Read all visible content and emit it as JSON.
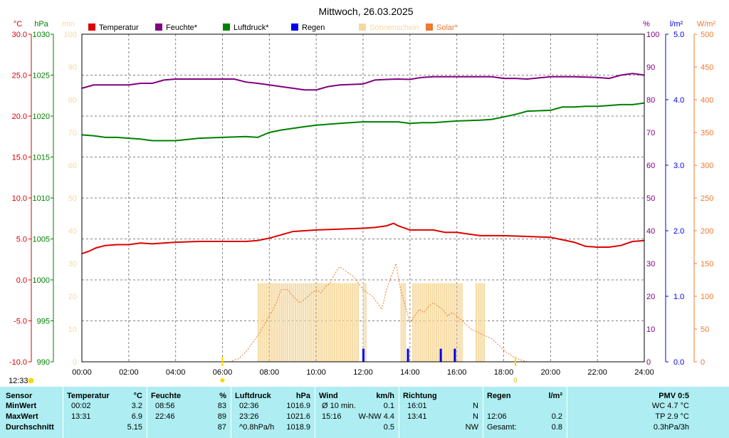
{
  "title": "Mittwoch, 26.03.2025",
  "colors": {
    "temperature": "#dd0000",
    "humidity": "#800080",
    "pressure": "#008000",
    "rain": "#0000ee",
    "sunshine": "#f5d9a0",
    "solar": "#f07830",
    "grid": "#808080",
    "table_bg": "#aeeef2"
  },
  "chart_data": {
    "type": "line",
    "title": "Mittwoch, 26.03.2025",
    "x_unit": "hours",
    "x_ticks": [
      "00:00",
      "02:00",
      "04:00",
      "06:00",
      "08:00",
      "10:00",
      "12:00",
      "14:00",
      "16:00",
      "18:00",
      "20:00",
      "22:00",
      "24:00"
    ],
    "x_range": [
      0,
      24
    ],
    "grid": true,
    "legend": [
      {
        "name": "Temperatur",
        "color": "#dd0000"
      },
      {
        "name": "Feuchte*",
        "color": "#800080"
      },
      {
        "name": "Luftdruck*",
        "color": "#008000"
      },
      {
        "name": "Regen",
        "color": "#0000ee"
      },
      {
        "name": "Sonnenschein",
        "color": "#f5d9a0"
      },
      {
        "name": "Solar*",
        "color": "#f07830"
      }
    ],
    "axes": {
      "temperature": {
        "unit": "°C",
        "range": [
          -10,
          30
        ],
        "ticks": [
          "30.0",
          "25.0",
          "20.0",
          "15.0",
          "10.0",
          "5.0",
          "0.0",
          "-5.0",
          "-10.0"
        ]
      },
      "pressure": {
        "unit": "hPa",
        "range": [
          990,
          1030
        ],
        "ticks": [
          "1030",
          "1025",
          "1020",
          "1015",
          "1010",
          "1005",
          "1000",
          "995",
          "990"
        ]
      },
      "sunshine": {
        "unit": "min",
        "range": [
          0,
          100
        ],
        "ticks": [
          "100",
          "90",
          "80",
          "70",
          "60",
          "50",
          "40",
          "30",
          "20",
          "10",
          "0"
        ]
      },
      "humidity": {
        "unit": "%",
        "range": [
          0,
          100
        ],
        "ticks": [
          "100",
          "90",
          "80",
          "70",
          "60",
          "50",
          "40",
          "30",
          "20",
          "10",
          "0"
        ]
      },
      "rain": {
        "unit": "l/m²",
        "range": [
          0,
          5
        ],
        "ticks": [
          "5.0",
          "4.0",
          "3.0",
          "2.0",
          "1.0",
          "0.0"
        ]
      },
      "solar": {
        "unit": "W/m²",
        "range": [
          0,
          500
        ],
        "ticks": [
          "500",
          "450",
          "400",
          "350",
          "300",
          "250",
          "200",
          "150",
          "100",
          "50",
          "0"
        ]
      }
    },
    "series": [
      {
        "name": "Temperatur",
        "axis": "temperature",
        "x": [
          0,
          0.3,
          0.6,
          1,
          1.5,
          2,
          2.5,
          3,
          4,
          5,
          6,
          7,
          7.5,
          8,
          8.5,
          9,
          9.5,
          10,
          11,
          12,
          12.5,
          13,
          13.3,
          13.5,
          14,
          15,
          15.5,
          16,
          16.5,
          17,
          18,
          19,
          20,
          20.5,
          21,
          21.5,
          22,
          22.5,
          23,
          23.5,
          24
        ],
        "values": [
          3.2,
          3.5,
          3.9,
          4.2,
          4.3,
          4.3,
          4.5,
          4.4,
          4.6,
          4.7,
          4.7,
          4.7,
          4.8,
          5.1,
          5.5,
          5.9,
          6.0,
          6.1,
          6.2,
          6.3,
          6.4,
          6.6,
          6.9,
          6.6,
          6.1,
          6.1,
          5.8,
          5.8,
          5.6,
          5.4,
          5.4,
          5.3,
          5.2,
          4.9,
          4.6,
          4.1,
          4.0,
          4.0,
          4.2,
          4.7,
          4.8
        ]
      },
      {
        "name": "Feuchte*",
        "axis": "humidity",
        "x": [
          0,
          0.5,
          1,
          2,
          2.5,
          3,
          3.5,
          4,
          5,
          6,
          6.5,
          7,
          7.5,
          8,
          8.5,
          9,
          9.5,
          10,
          10.5,
          11,
          12,
          12.5,
          13,
          13.5,
          14,
          14.5,
          15,
          16,
          17,
          17.5,
          18,
          18.5,
          19,
          20,
          21,
          22,
          22.5,
          23,
          23.5,
          24
        ],
        "values": [
          83.5,
          84.5,
          84.5,
          84.5,
          85,
          85,
          86,
          86.3,
          86.3,
          86.3,
          86.3,
          85.4,
          85,
          84.5,
          84,
          83.5,
          83,
          83,
          84,
          84.5,
          84.8,
          86,
          86.2,
          86.3,
          86.2,
          86.8,
          87,
          87,
          87,
          87,
          86.5,
          86.5,
          86.3,
          87,
          87,
          86.8,
          86.5,
          87.5,
          88,
          87.5
        ]
      },
      {
        "name": "Luftdruck*",
        "axis": "pressure",
        "x": [
          0,
          0.5,
          1,
          1.5,
          2,
          2.5,
          3,
          4,
          5,
          6,
          7,
          7.5,
          8,
          8.5,
          9,
          9.5,
          10,
          10.5,
          11,
          12,
          12.5,
          13,
          13.5,
          14,
          14.5,
          15,
          16,
          17,
          17.5,
          18,
          18.5,
          19,
          20,
          20.5,
          21,
          21.5,
          22,
          22.5,
          23,
          23.5,
          24
        ],
        "values": [
          1017.7,
          1017.6,
          1017.4,
          1017.4,
          1017.3,
          1017.2,
          1017.0,
          1017.0,
          1017.3,
          1017.4,
          1017.5,
          1017.4,
          1018.0,
          1018.3,
          1018.5,
          1018.7,
          1018.9,
          1019.0,
          1019.1,
          1019.3,
          1019.3,
          1019.3,
          1019.3,
          1019.1,
          1019.2,
          1019.2,
          1019.4,
          1019.5,
          1019.6,
          1019.9,
          1020.2,
          1020.6,
          1020.7,
          1021.1,
          1021.1,
          1021.2,
          1021.2,
          1021.3,
          1021.4,
          1021.4,
          1021.6
        ]
      },
      {
        "name": "Solar*",
        "axis": "solar",
        "x": [
          6.3,
          6.7,
          7,
          7.3,
          7.6,
          8,
          8.3,
          8.5,
          8.8,
          9,
          9.3,
          9.5,
          9.8,
          10,
          10.2,
          10.4,
          10.6,
          10.8,
          11,
          11.2,
          11.4,
          11.6,
          11.8,
          12,
          12.2,
          12.4,
          12.6,
          12.8,
          13,
          13.2,
          13.4,
          13.6,
          13.8,
          14,
          14.2,
          14.4,
          14.6,
          14.8,
          15,
          15.2,
          15.4,
          15.6,
          15.8,
          16,
          16.3,
          16.6,
          16.9,
          17.2,
          17.5,
          17.8,
          18.1,
          18.4,
          18.7,
          19
        ],
        "values": [
          0,
          5,
          15,
          30,
          45,
          70,
          90,
          110,
          110,
          100,
          90,
          95,
          105,
          110,
          105,
          115,
          120,
          135,
          145,
          140,
          135,
          130,
          120,
          110,
          105,
          100,
          90,
          80,
          110,
          130,
          150,
          110,
          85,
          60,
          70,
          80,
          75,
          85,
          90,
          85,
          80,
          70,
          75,
          70,
          60,
          50,
          45,
          40,
          35,
          25,
          15,
          8,
          3,
          0
        ]
      },
      {
        "name": "Sonnenschein",
        "axis": "sunshine",
        "segments": [
          [
            7.5,
            11.8
          ],
          [
            12.0,
            12.1
          ],
          [
            13.6,
            13.8
          ],
          [
            14.1,
            16.2
          ],
          [
            16.8,
            17.2
          ]
        ],
        "minutes": 5
      },
      {
        "name": "Regen",
        "axis": "rain",
        "x": [
          12.0,
          13.9,
          15.3,
          15.9
        ],
        "values": [
          0.2,
          0.2,
          0.2,
          0.2
        ]
      }
    ],
    "marker_labels": [
      "12:33"
    ]
  },
  "table": {
    "headers": {
      "sensor": "Sensor",
      "temp": "Temperatur",
      "temp_unit": "°C",
      "hum": "Feuchte",
      "hum_unit": "%",
      "press": "Luftdruck",
      "press_unit": "hPa",
      "wind": "Wind",
      "wind_unit": "km/h",
      "dir": "Richtung",
      "rain": "Regen",
      "rain_unit": "l/m²",
      "pmv": "PMV 0:5"
    },
    "rows": [
      {
        "label": "MinWert",
        "temp_time": "00:02",
        "temp_val": "3.2",
        "hum_time": "08:56",
        "hum_val": "83",
        "press_time": "02:36",
        "press_val": "1016.9",
        "wind_text": "Ø 10 min.",
        "wind_val": "0.1",
        "dir_time": "16:01",
        "dir_val": "N",
        "rain_time": "",
        "rain_val": "",
        "pmv": "WC 4.7 °C"
      },
      {
        "label": "MaxWert",
        "temp_time": "13:31",
        "temp_val": "6.9",
        "hum_time": "22:46",
        "hum_val": "89",
        "press_time": "23:26",
        "press_val": "1021.6",
        "wind_text": "15:16",
        "wind_val": "W-NW 4.4",
        "dir_time": "13:41",
        "dir_val": "N",
        "rain_time": "12:06",
        "rain_val": "0.2",
        "pmv": "TP 2.9 °C"
      },
      {
        "label": "Durchschnitt",
        "temp_time": "",
        "temp_val": "5.15",
        "hum_time": "",
        "hum_val": "87",
        "press_time": "^0.8hPa/h",
        "press_val": "1018.9",
        "wind_text": "",
        "wind_val": "0.5",
        "dir_time": "",
        "dir_val": "NW",
        "rain_time": "Gesamt:",
        "rain_val": "0.8",
        "pmv": "0.3hPa/3h"
      }
    ]
  }
}
